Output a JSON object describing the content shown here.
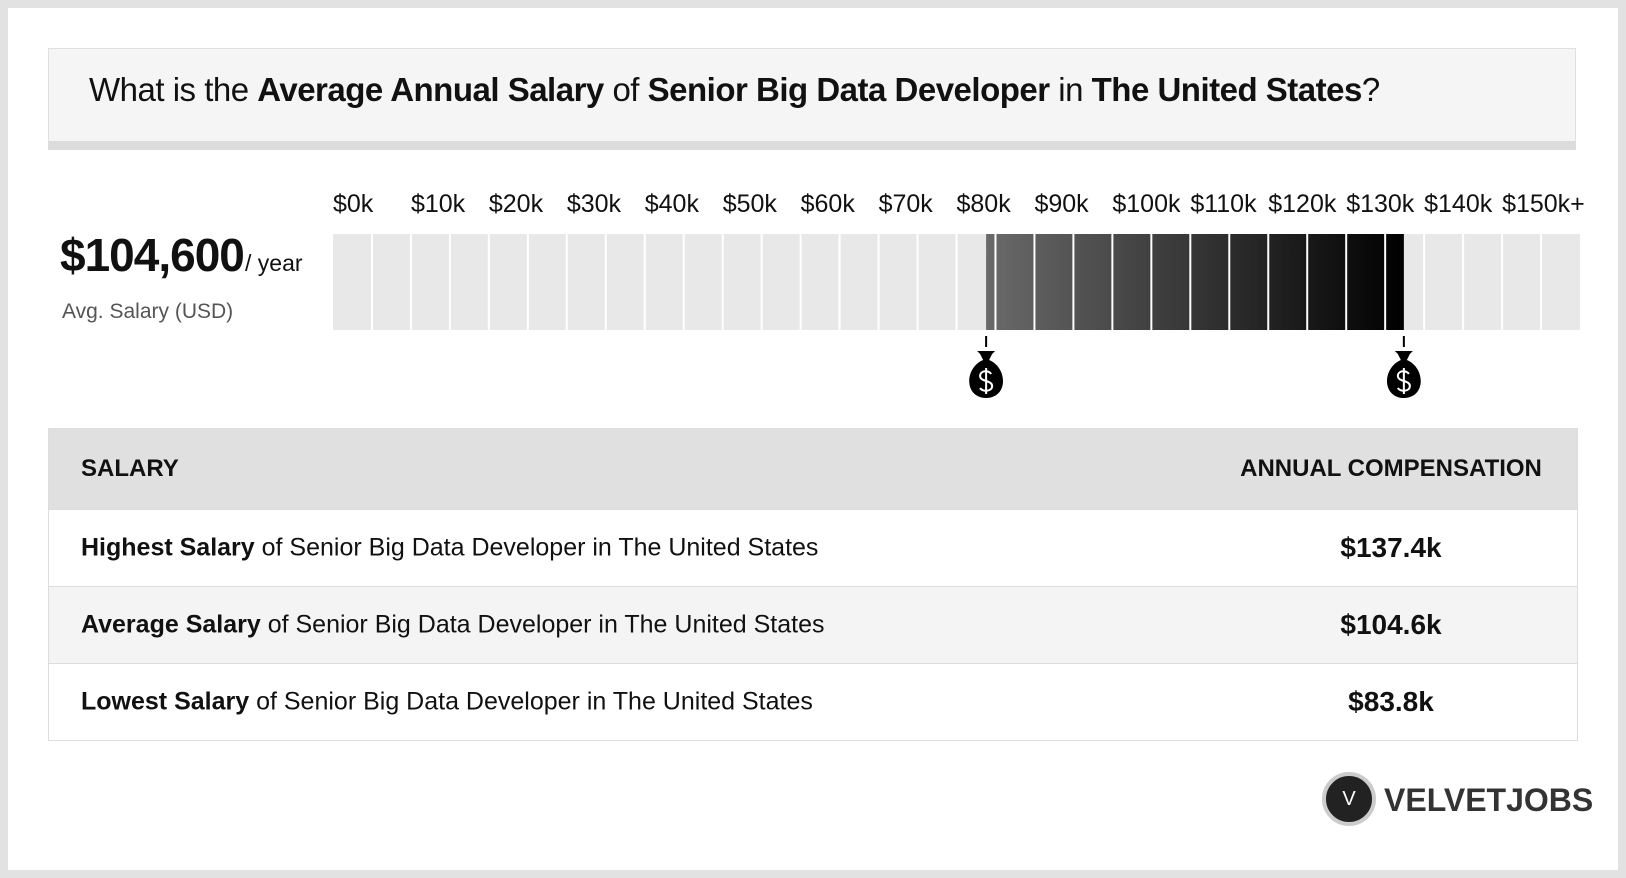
{
  "header": {
    "title": [
      {
        "text": "What is the ",
        "bold": false
      },
      {
        "text": "Average Annual Salary",
        "bold": true
      },
      {
        "text": " of ",
        "bold": false
      },
      {
        "text": "Senior Big Data Developer",
        "bold": true
      },
      {
        "text": " in ",
        "bold": false
      },
      {
        "text": "The United States",
        "bold": true
      },
      {
        "text": "?",
        "bold": false
      }
    ]
  },
  "summary": {
    "value": "$104,600",
    "unit": "/ year",
    "caption": "Avg. Salary (USD)"
  },
  "chart_data": {
    "type": "range",
    "min": 83800,
    "max": 137400,
    "xlim": [
      0,
      160000
    ],
    "xticks": [
      {
        "value": 0,
        "label": "$0k"
      },
      {
        "value": 10000,
        "label": "$10k"
      },
      {
        "value": 20000,
        "label": "$20k"
      },
      {
        "value": 30000,
        "label": "$30k"
      },
      {
        "value": 40000,
        "label": "$40k"
      },
      {
        "value": 50000,
        "label": "$50k"
      },
      {
        "value": 60000,
        "label": "$60k"
      },
      {
        "value": 70000,
        "label": "$70k"
      },
      {
        "value": 80000,
        "label": "$80k"
      },
      {
        "value": 90000,
        "label": "$90k"
      },
      {
        "value": 100000,
        "label": "$100k"
      },
      {
        "value": 110000,
        "label": "$110k"
      },
      {
        "value": 120000,
        "label": "$120k"
      },
      {
        "value": 130000,
        "label": "$130k"
      },
      {
        "value": 140000,
        "label": "$140k"
      },
      {
        "value": 150000,
        "label": "$150k+"
      }
    ],
    "colors": [
      "#6a6a6a",
      "#000000"
    ],
    "track_color": "#e8e8e8"
  },
  "table": {
    "header": [
      "SALARY",
      "ANNUAL COMPENSATION"
    ],
    "rows": [
      {
        "label": [
          {
            "text": "Highest Salary",
            "bold": true
          },
          {
            "text": " of Senior Big Data Developer in The United States",
            "bold": false
          }
        ],
        "value": "$137.4k"
      },
      {
        "label": [
          {
            "text": "Average Salary",
            "bold": true
          },
          {
            "text": " of Senior Big Data Developer in The United States",
            "bold": false
          }
        ],
        "value": "$104.6k"
      },
      {
        "label": [
          {
            "text": "Lowest Salary",
            "bold": true
          },
          {
            "text": " of Senior Big Data Developer in The United States",
            "bold": false
          }
        ],
        "value": "$83.8k"
      }
    ]
  },
  "logo": {
    "mark": "V",
    "name": "VELVETJOBS"
  }
}
